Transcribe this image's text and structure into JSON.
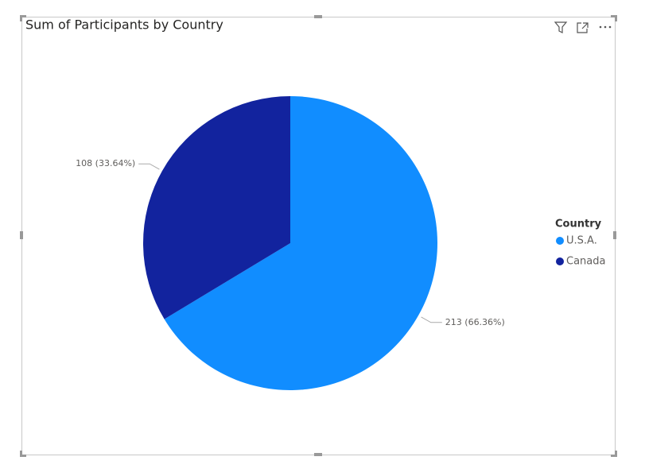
{
  "chart_data": {
    "type": "pie",
    "title": "Sum of Participants by Country",
    "legend_title": "Country",
    "categories": [
      "U.S.A.",
      "Canada"
    ],
    "values": [
      213,
      108
    ],
    "value_labels": [
      "213 (66.36%)",
      "108 (33.64%)"
    ],
    "colors": [
      "#118DFF",
      "#12239E"
    ]
  }
}
